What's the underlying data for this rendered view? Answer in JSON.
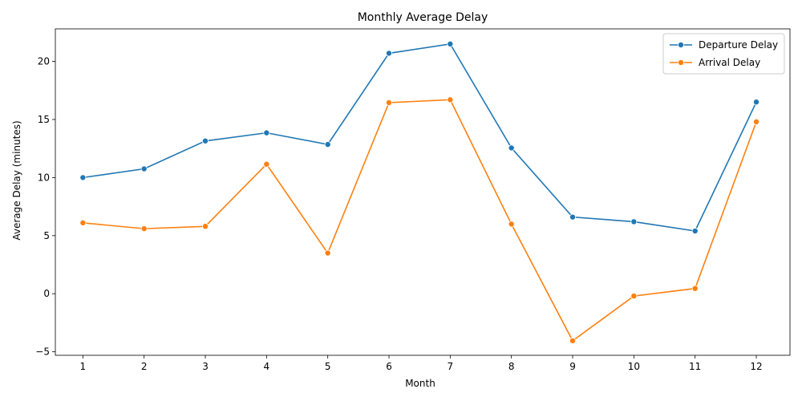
{
  "chart_data": {
    "type": "line",
    "title": "Monthly Average Delay",
    "xlabel": "Month",
    "ylabel": "Average Delay (minutes)",
    "x": [
      1,
      2,
      3,
      4,
      5,
      6,
      7,
      8,
      9,
      10,
      11,
      12
    ],
    "xticks": [
      "1",
      "2",
      "3",
      "4",
      "5",
      "6",
      "7",
      "8",
      "9",
      "10",
      "11",
      "12"
    ],
    "yticks": [
      -5,
      0,
      5,
      10,
      15,
      20
    ],
    "ytick_labels": [
      "−5",
      "0",
      "5",
      "10",
      "15",
      "20"
    ],
    "xlim": [
      0.55,
      12.55
    ],
    "ylim": [
      -5.3,
      22.8
    ],
    "grid": false,
    "legend_position": "top-right",
    "series": [
      {
        "name": "Departure Delay",
        "color": "#1f77b4",
        "marker": "circle",
        "values": [
          10.0,
          10.75,
          13.15,
          13.85,
          12.85,
          20.7,
          21.5,
          12.55,
          6.6,
          6.2,
          5.4,
          16.5
        ]
      },
      {
        "name": "Arrival Delay",
        "color": "#ff7f0e",
        "marker": "circle",
        "values": [
          6.1,
          5.6,
          5.8,
          11.15,
          3.5,
          16.45,
          16.7,
          6.0,
          -4.05,
          -0.2,
          0.45,
          14.8
        ]
      }
    ]
  }
}
